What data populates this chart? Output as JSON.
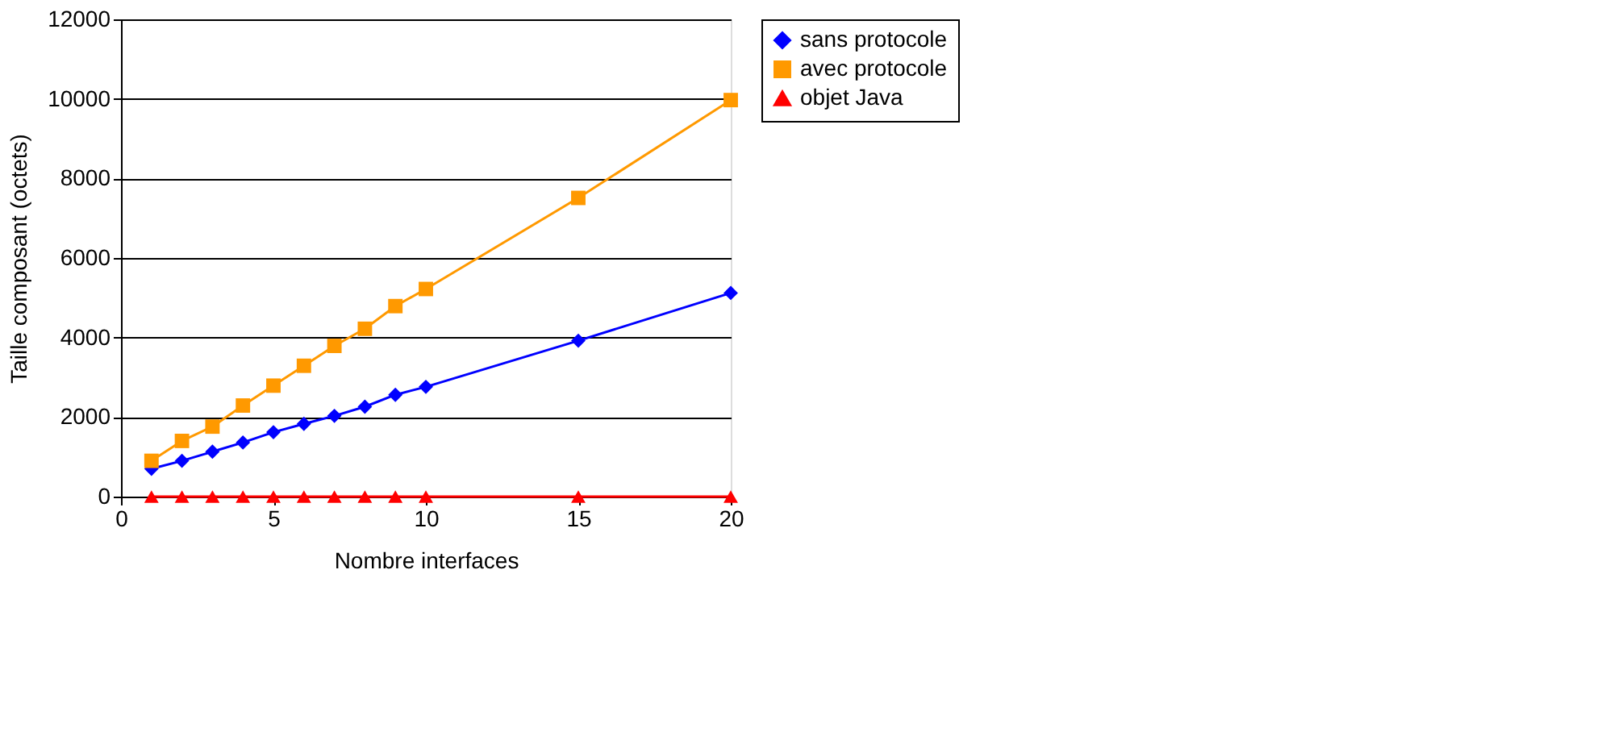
{
  "chart_data": {
    "type": "line",
    "xlabel": "Nombre interfaces",
    "ylabel": "Taille composant (octets)",
    "x": [
      1,
      2,
      3,
      4,
      5,
      6,
      7,
      8,
      9,
      10,
      15,
      20
    ],
    "series": [
      {
        "name": "sans protocole",
        "color": "#0000ff",
        "marker": "diamond",
        "values": [
          700,
          900,
          1130,
          1360,
          1620,
          1830,
          2030,
          2260,
          2560,
          2760,
          3920,
          5120
        ]
      },
      {
        "name": "avec protocole",
        "color": "#ff9900",
        "marker": "square",
        "values": [
          900,
          1400,
          1760,
          2290,
          2790,
          3290,
          3790,
          4220,
          4790,
          5220,
          7510,
          9970
        ]
      },
      {
        "name": "objet Java",
        "color": "#ff0000",
        "marker": "triangle",
        "values": [
          0,
          0,
          0,
          0,
          0,
          0,
          0,
          0,
          0,
          0,
          0,
          0
        ]
      }
    ],
    "xlim": [
      0,
      20
    ],
    "xticks": [
      0,
      5,
      10,
      15,
      20
    ],
    "ylim": [
      0,
      12000
    ],
    "yticks": [
      0,
      2000,
      4000,
      6000,
      8000,
      10000,
      12000
    ],
    "grid": "y",
    "legend": "right",
    "line_style": "solid"
  }
}
